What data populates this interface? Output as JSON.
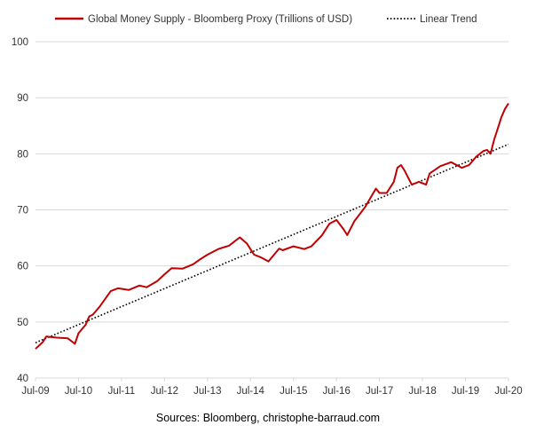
{
  "source_note": "Sources: Bloomberg, christophe-barraud.com",
  "chart_data": {
    "type": "line",
    "title": "",
    "xlabel": "",
    "ylabel": "",
    "ylim": [
      40,
      100
    ],
    "yticks": [
      40,
      50,
      60,
      70,
      80,
      90,
      100
    ],
    "x_tick_labels": [
      "Jul-09",
      "Jul-10",
      "Jul-11",
      "Jul-12",
      "Jul-13",
      "Jul-14",
      "Jul-15",
      "Jul-16",
      "Jul-17",
      "Jul-18",
      "Jul-19",
      "Jul-20"
    ],
    "grid": "horizontal",
    "legend_position": "top",
    "colors": {
      "series": "#c00000",
      "trend": "#000000",
      "grid": "#d9d9d9"
    },
    "series": [
      {
        "name": "Global Money Supply - Bloomberg Proxy (Trillions of USD)",
        "style": "solid",
        "x": [
          "2009-07",
          "2009-09",
          "2009-10",
          "2010-01",
          "2010-04",
          "2010-06",
          "2010-07",
          "2010-09",
          "2010-10",
          "2010-11",
          "2011-01",
          "2011-04",
          "2011-06",
          "2011-09",
          "2011-12",
          "2012-02",
          "2012-05",
          "2012-07",
          "2012-09",
          "2012-12",
          "2013-03",
          "2013-05",
          "2013-07",
          "2013-10",
          "2014-01",
          "2014-04",
          "2014-06",
          "2014-08",
          "2014-10",
          "2014-12",
          "2015-03",
          "2015-04",
          "2015-07",
          "2015-10",
          "2015-12",
          "2016-03",
          "2016-05",
          "2016-07",
          "2016-09",
          "2016-10",
          "2016-12",
          "2017-03",
          "2017-06",
          "2017-07",
          "2017-09",
          "2017-11",
          "2017-12",
          "2018-01",
          "2018-02",
          "2018-04",
          "2018-06",
          "2018-08",
          "2018-09",
          "2018-12",
          "2019-03",
          "2019-06",
          "2019-08",
          "2019-10",
          "2019-12",
          "2020-01",
          "2020-02",
          "2020-03",
          "2020-04",
          "2020-05",
          "2020-06",
          "2020-07"
        ],
        "values": [
          45.2,
          46.4,
          47.4,
          47.2,
          47.1,
          46.1,
          48.0,
          49.5,
          51.0,
          51.3,
          52.8,
          55.5,
          56.0,
          55.7,
          56.5,
          56.2,
          57.3,
          58.5,
          59.6,
          59.5,
          60.3,
          61.2,
          62.0,
          63.0,
          63.6,
          65.1,
          64.0,
          62.0,
          61.5,
          60.8,
          63.1,
          62.8,
          63.5,
          63.0,
          63.5,
          65.5,
          67.5,
          68.2,
          66.5,
          65.5,
          68.0,
          70.5,
          73.8,
          73.0,
          73.0,
          75.0,
          77.5,
          78.0,
          77.0,
          74.5,
          75.0,
          74.5,
          76.5,
          77.8,
          78.5,
          77.5,
          78.0,
          79.5,
          80.5,
          80.7,
          80.0,
          82.5,
          84.5,
          86.5,
          88.0,
          89.0
        ]
      },
      {
        "name": "Linear Trend",
        "style": "dotted",
        "x": [
          "2009-07",
          "2020-07"
        ],
        "values": [
          46.3,
          81.7
        ]
      }
    ]
  }
}
